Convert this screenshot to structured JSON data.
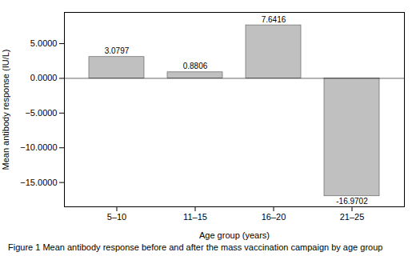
{
  "chart_data": {
    "type": "bar",
    "caption": "Figure 1 Mean antibody response before and after the mass vaccination campaign by age group",
    "categories": [
      "5–10",
      "11–15",
      "16–20",
      "21–25"
    ],
    "values": [
      3.0797,
      0.8806,
      7.6416,
      -16.9702
    ],
    "color": "#c0c0c0",
    "xlabel": "Age group (years)",
    "ylabel": "Mean antibody response (IU/L)",
    "ylim": [
      -18.5,
      9.5
    ],
    "yticks": [
      {
        "value": 5.0,
        "label": "5.0000"
      },
      {
        "value": 0.0,
        "label": "0.0000"
      },
      {
        "value": -5.0,
        "label": "−5.0000"
      },
      {
        "value": -10.0,
        "label": "−10.0000"
      },
      {
        "value": -15.0,
        "label": "−15.0000"
      }
    ],
    "data_labels": true
  }
}
